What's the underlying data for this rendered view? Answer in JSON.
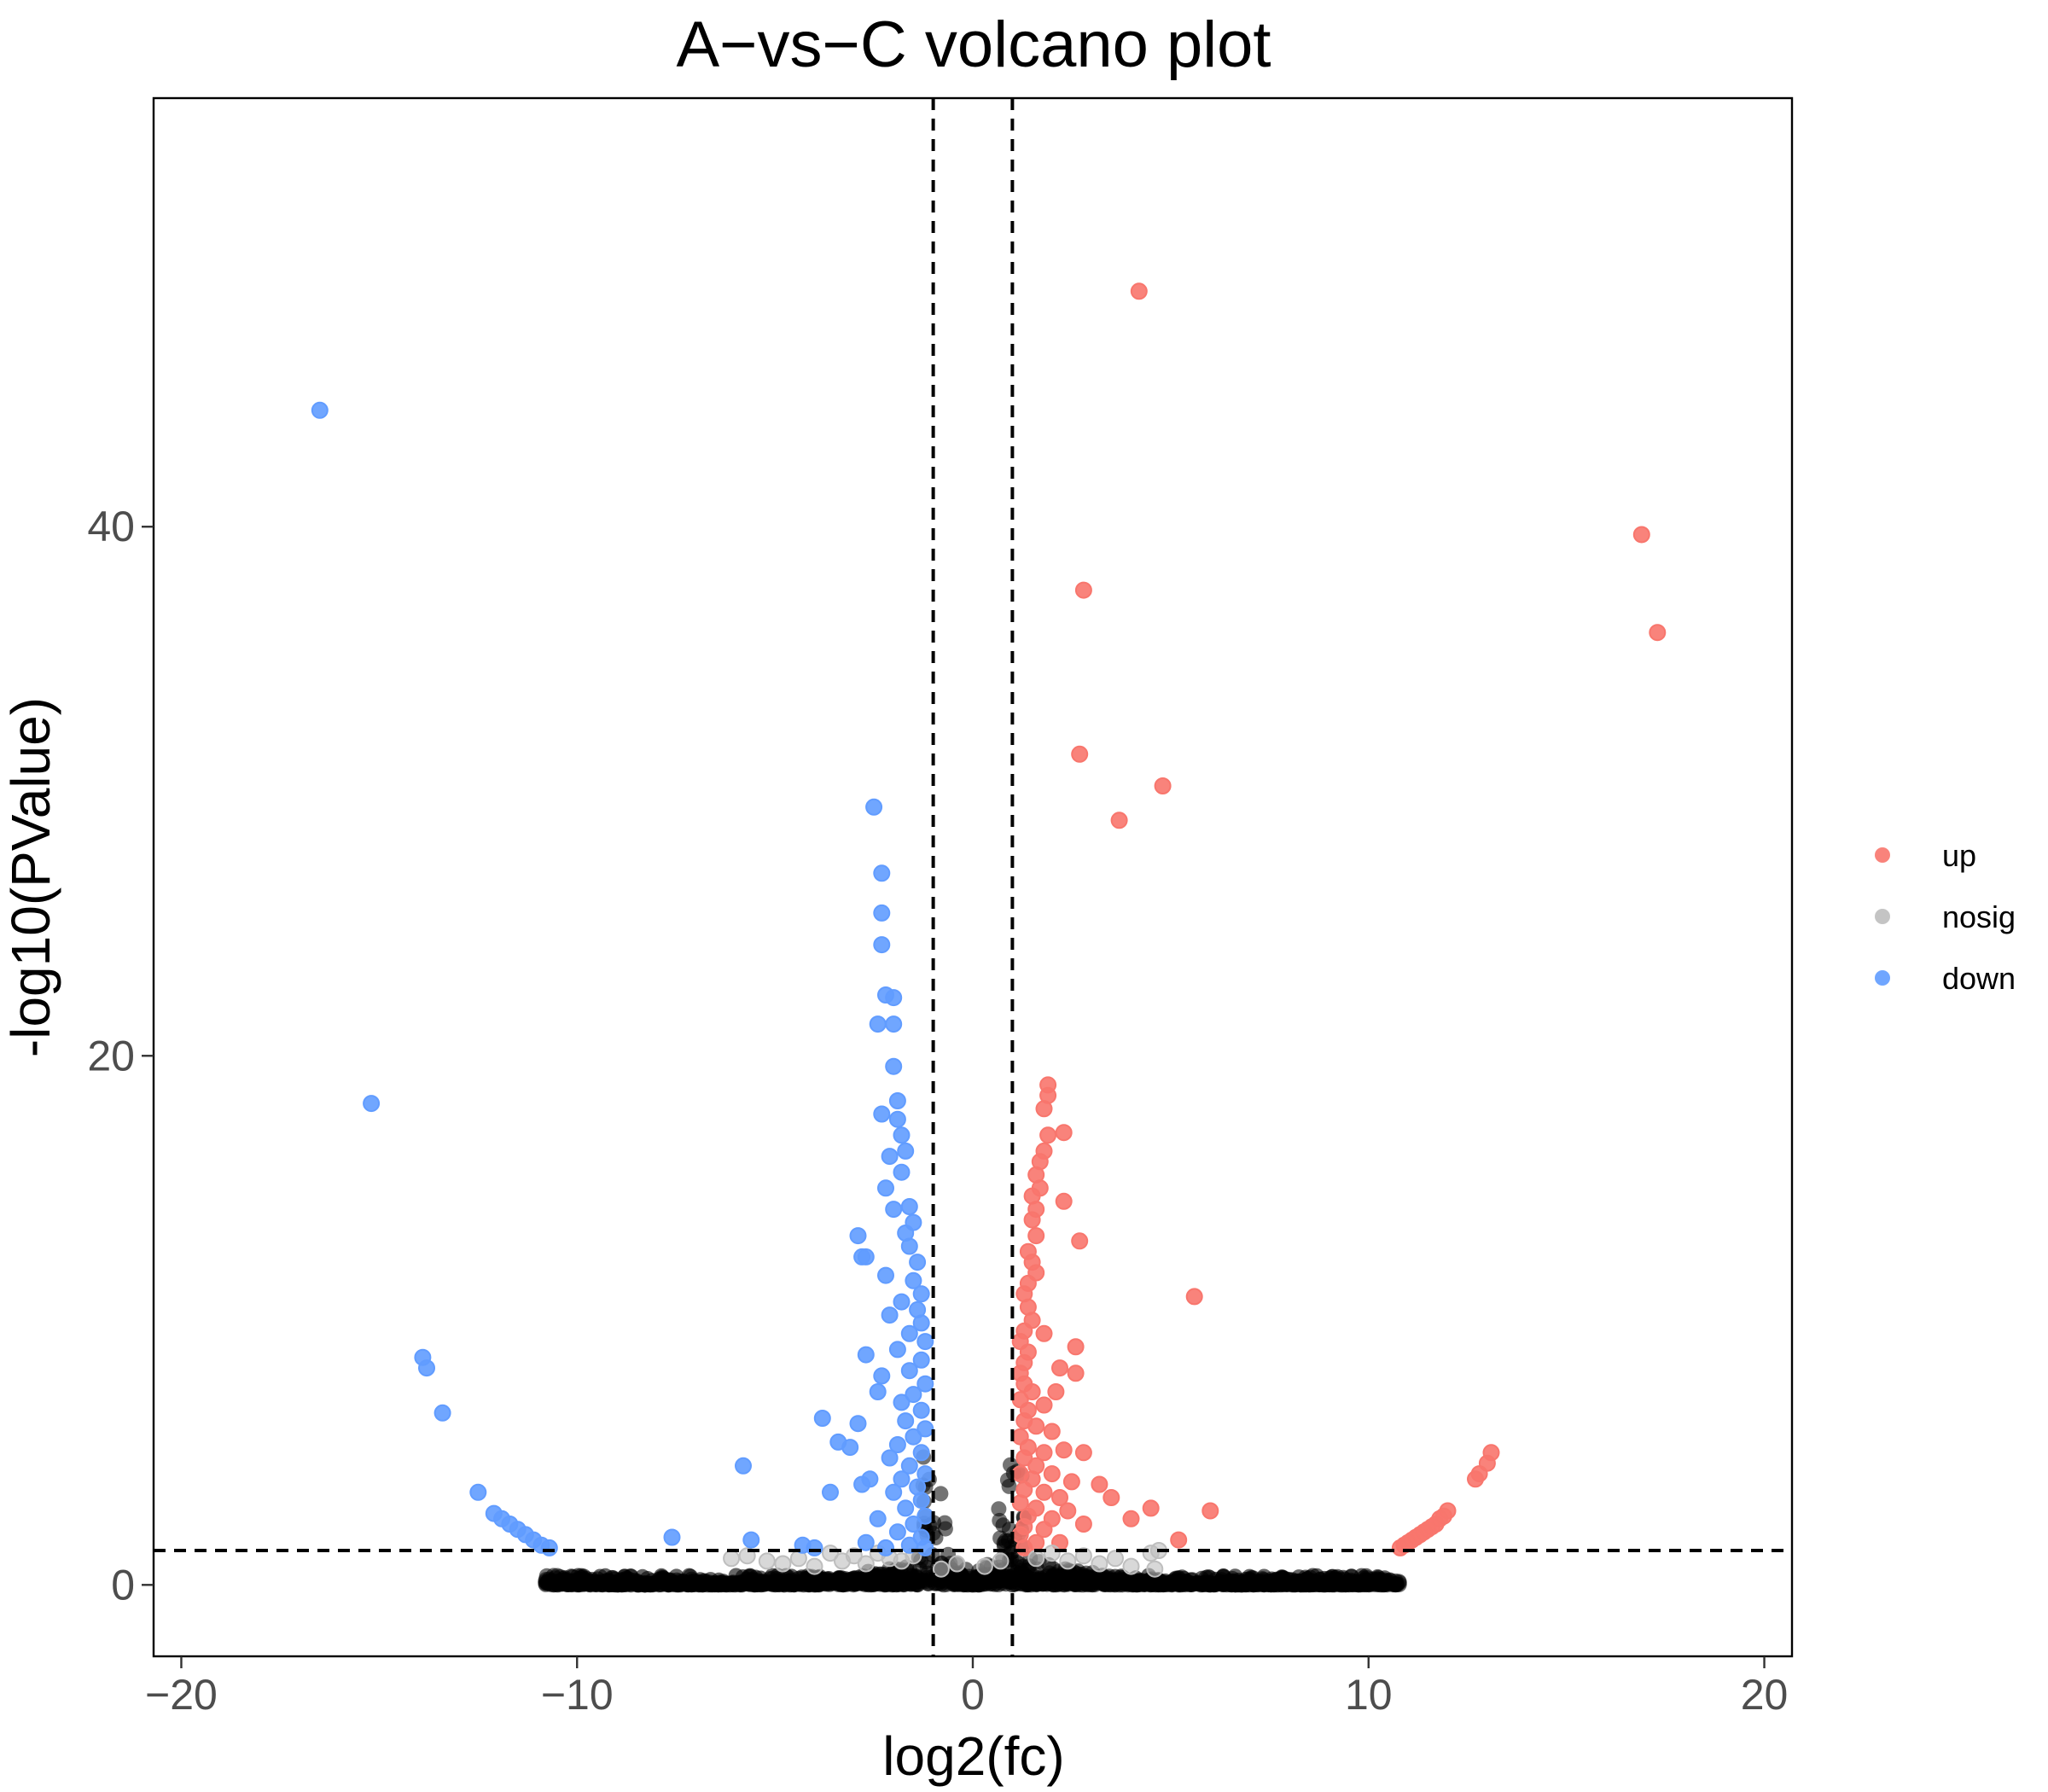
{
  "chart_data": {
    "type": "scatter",
    "title": "A−vs−C volcano plot",
    "xlabel": "log2(fc)",
    "ylabel": "-log10(PValue)",
    "xlim": [
      -20.7,
      20.7
    ],
    "ylim": [
      -2.7,
      56.2
    ],
    "x_ticks": [
      -20,
      -10,
      0,
      10,
      20
    ],
    "x_tick_labels": [
      "−20",
      "−10",
      "0",
      "10",
      "20"
    ],
    "y_ticks": [
      0,
      20,
      40
    ],
    "y_tick_labels": [
      "0",
      "20",
      "40"
    ],
    "grid": false,
    "legend": {
      "placement": "right",
      "entries": [
        {
          "name": "up",
          "color": "#F8766D"
        },
        {
          "name": "nosig",
          "color": "#BEBEBE"
        },
        {
          "name": "down",
          "color": "#619CFF"
        }
      ]
    },
    "thresholds": {
      "log2fc": [
        -1,
        1
      ],
      "neg_log10_p": 1.3
    },
    "background_points": "dense black cloud of non-significant genes along the V-shaped baseline",
    "series": [
      {
        "name": "up",
        "color": "#F8766D",
        "points": [
          [
            4.2,
            48.9
          ],
          [
            16.9,
            39.7
          ],
          [
            17.3,
            36.0
          ],
          [
            2.8,
            37.6
          ],
          [
            2.7,
            31.4
          ],
          [
            4.8,
            30.2
          ],
          [
            3.7,
            28.9
          ],
          [
            1.9,
            18.9
          ],
          [
            1.9,
            18.5
          ],
          [
            1.8,
            18.0
          ],
          [
            2.3,
            17.1
          ],
          [
            1.9,
            17.0
          ],
          [
            1.8,
            16.4
          ],
          [
            1.7,
            16.0
          ],
          [
            1.6,
            15.5
          ],
          [
            1.7,
            15.0
          ],
          [
            1.5,
            14.7
          ],
          [
            1.6,
            14.2
          ],
          [
            2.3,
            14.5
          ],
          [
            1.5,
            13.8
          ],
          [
            1.6,
            13.2
          ],
          [
            2.7,
            13.0
          ],
          [
            1.4,
            12.6
          ],
          [
            1.5,
            12.2
          ],
          [
            1.6,
            11.8
          ],
          [
            1.4,
            11.4
          ],
          [
            1.3,
            11.0
          ],
          [
            5.6,
            10.9
          ],
          [
            1.4,
            10.5
          ],
          [
            1.5,
            10.0
          ],
          [
            1.3,
            9.6
          ],
          [
            1.8,
            9.5
          ],
          [
            1.2,
            9.2
          ],
          [
            1.4,
            8.8
          ],
          [
            2.6,
            9.0
          ],
          [
            1.3,
            8.4
          ],
          [
            1.2,
            8.0
          ],
          [
            2.2,
            8.2
          ],
          [
            2.6,
            8.0
          ],
          [
            1.3,
            7.6
          ],
          [
            1.5,
            7.3
          ],
          [
            2.1,
            7.3
          ],
          [
            1.2,
            7.0
          ],
          [
            1.4,
            6.6
          ],
          [
            1.8,
            6.8
          ],
          [
            1.3,
            6.2
          ],
          [
            1.6,
            6.0
          ],
          [
            2.0,
            5.8
          ],
          [
            1.2,
            5.6
          ],
          [
            1.4,
            5.2
          ],
          [
            1.8,
            5.0
          ],
          [
            2.3,
            5.1
          ],
          [
            2.8,
            5.0
          ],
          [
            1.3,
            4.8
          ],
          [
            1.6,
            4.5
          ],
          [
            1.2,
            4.2
          ],
          [
            1.5,
            4.0
          ],
          [
            2.0,
            4.2
          ],
          [
            2.5,
            3.9
          ],
          [
            3.2,
            3.8
          ],
          [
            1.3,
            3.6
          ],
          [
            1.8,
            3.5
          ],
          [
            2.2,
            3.3
          ],
          [
            3.5,
            3.3
          ],
          [
            1.2,
            3.1
          ],
          [
            1.6,
            2.9
          ],
          [
            2.4,
            2.8
          ],
          [
            4.5,
            2.9
          ],
          [
            6.0,
            2.8
          ],
          [
            1.4,
            2.6
          ],
          [
            2.0,
            2.5
          ],
          [
            2.8,
            2.3
          ],
          [
            4.0,
            2.5
          ],
          [
            1.3,
            2.2
          ],
          [
            1.8,
            2.1
          ],
          [
            5.2,
            1.7
          ],
          [
            1.2,
            1.9
          ],
          [
            1.6,
            1.6
          ],
          [
            2.2,
            1.6
          ],
          [
            1.3,
            1.4
          ],
          [
            13.1,
            5.0
          ],
          [
            13.0,
            4.6
          ],
          [
            12.8,
            4.2
          ],
          [
            12.7,
            4.0
          ],
          [
            12.0,
            2.8
          ],
          [
            11.9,
            2.6
          ],
          [
            11.8,
            2.5
          ],
          [
            11.7,
            2.3
          ],
          [
            11.6,
            2.2
          ],
          [
            11.5,
            2.1
          ],
          [
            11.4,
            2.0
          ],
          [
            11.3,
            1.9
          ],
          [
            11.2,
            1.8
          ],
          [
            11.1,
            1.7
          ],
          [
            11.0,
            1.6
          ],
          [
            10.9,
            1.5
          ],
          [
            10.8,
            1.4
          ]
        ]
      },
      {
        "name": "nosig",
        "color": "#BEBEBE",
        "points": [
          [
            -6.1,
            1.0
          ],
          [
            -5.7,
            1.1
          ],
          [
            -5.2,
            0.9
          ],
          [
            -4.8,
            0.8
          ],
          [
            -4.4,
            1.0
          ],
          [
            -4.0,
            0.7
          ],
          [
            -3.6,
            1.2
          ],
          [
            -3.3,
            0.9
          ],
          [
            -3.0,
            1.1
          ],
          [
            -2.7,
            0.8
          ],
          [
            -2.4,
            1.2
          ],
          [
            -2.1,
            1.0
          ],
          [
            -1.8,
            0.9
          ],
          [
            -1.5,
            1.1
          ],
          [
            -0.8,
            0.6
          ],
          [
            -0.4,
            0.8
          ],
          [
            0.3,
            0.7
          ],
          [
            0.7,
            0.9
          ],
          [
            1.6,
            1.0
          ],
          [
            2.0,
            1.2
          ],
          [
            2.4,
            0.9
          ],
          [
            2.8,
            1.1
          ],
          [
            3.2,
            0.8
          ],
          [
            3.6,
            1.0
          ],
          [
            4.0,
            0.7
          ],
          [
            4.5,
            1.2
          ],
          [
            4.7,
            1.3
          ],
          [
            4.6,
            0.6
          ]
        ]
      },
      {
        "name": "down",
        "color": "#619CFF",
        "points": [
          [
            -16.5,
            44.4
          ],
          [
            -15.2,
            18.2
          ],
          [
            -13.9,
            8.6
          ],
          [
            -13.8,
            8.2
          ],
          [
            -13.4,
            6.5
          ],
          [
            -12.5,
            3.5
          ],
          [
            -12.1,
            2.7
          ],
          [
            -11.9,
            2.5
          ],
          [
            -11.7,
            2.3
          ],
          [
            -11.5,
            2.1
          ],
          [
            -11.3,
            1.9
          ],
          [
            -11.1,
            1.7
          ],
          [
            -10.9,
            1.5
          ],
          [
            -10.7,
            1.4
          ],
          [
            -7.6,
            1.8
          ],
          [
            -5.8,
            4.5
          ],
          [
            -5.6,
            1.7
          ],
          [
            -4.3,
            1.5
          ],
          [
            -4.0,
            1.4
          ],
          [
            -3.8,
            6.3
          ],
          [
            -3.6,
            3.5
          ],
          [
            -3.4,
            5.4
          ],
          [
            -3.1,
            5.2
          ],
          [
            -2.9,
            6.1
          ],
          [
            -2.8,
            3.8
          ],
          [
            -2.7,
            12.4
          ],
          [
            -2.5,
            29.4
          ],
          [
            -2.4,
            21.2
          ],
          [
            -2.3,
            26.9
          ],
          [
            -2.3,
            25.4
          ],
          [
            -2.3,
            24.2
          ],
          [
            -2.2,
            22.3
          ],
          [
            -2.0,
            22.2
          ],
          [
            -2.0,
            21.2
          ],
          [
            -2.0,
            19.6
          ],
          [
            -1.9,
            18.3
          ],
          [
            -2.3,
            17.8
          ],
          [
            -1.9,
            17.6
          ],
          [
            -1.8,
            17.0
          ],
          [
            -1.7,
            16.4
          ],
          [
            -2.1,
            16.2
          ],
          [
            -1.8,
            15.6
          ],
          [
            -2.2,
            15.0
          ],
          [
            -1.6,
            14.3
          ],
          [
            -2.0,
            14.2
          ],
          [
            -1.5,
            13.7
          ],
          [
            -1.7,
            13.3
          ],
          [
            -2.9,
            13.2
          ],
          [
            -1.6,
            12.8
          ],
          [
            -2.8,
            12.4
          ],
          [
            -1.4,
            12.2
          ],
          [
            -2.2,
            11.7
          ],
          [
            -1.5,
            11.5
          ],
          [
            -1.3,
            11.0
          ],
          [
            -1.8,
            10.7
          ],
          [
            -1.4,
            10.4
          ],
          [
            -2.1,
            10.2
          ],
          [
            -1.3,
            9.9
          ],
          [
            -1.6,
            9.5
          ],
          [
            -1.2,
            9.2
          ],
          [
            -1.9,
            8.9
          ],
          [
            -2.7,
            8.7
          ],
          [
            -1.3,
            8.5
          ],
          [
            -1.6,
            8.1
          ],
          [
            -2.3,
            7.9
          ],
          [
            -1.2,
            7.6
          ],
          [
            -2.4,
            7.3
          ],
          [
            -1.5,
            7.2
          ],
          [
            -1.8,
            6.9
          ],
          [
            -1.3,
            6.6
          ],
          [
            -1.7,
            6.2
          ],
          [
            -1.2,
            5.9
          ],
          [
            -1.5,
            5.6
          ],
          [
            -1.9,
            5.3
          ],
          [
            -1.3,
            5.0
          ],
          [
            -2.1,
            4.8
          ],
          [
            -1.6,
            4.5
          ],
          [
            -1.2,
            4.2
          ],
          [
            -1.8,
            4.0
          ],
          [
            -2.6,
            4.0
          ],
          [
            -1.4,
            3.7
          ],
          [
            -2.0,
            3.5
          ],
          [
            -1.3,
            3.2
          ],
          [
            -1.7,
            2.9
          ],
          [
            -1.2,
            2.6
          ],
          [
            -2.4,
            2.5
          ],
          [
            -1.5,
            2.3
          ],
          [
            -1.9,
            2.0
          ],
          [
            -2.7,
            1.6
          ],
          [
            -1.3,
            1.8
          ],
          [
            -1.6,
            1.5
          ],
          [
            -2.2,
            1.4
          ],
          [
            -1.2,
            1.4
          ]
        ]
      }
    ]
  }
}
